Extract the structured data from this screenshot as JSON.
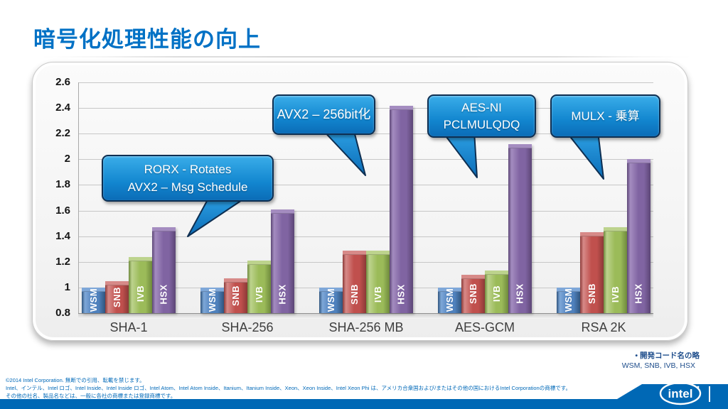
{
  "slide": {
    "title": "暗号化処理性能の向上",
    "footer_lines": [
      "©2014  Intel Corporation.  無断での引用、転載を禁じます。",
      "Intel、インテル、Intel ロゴ、Intel Inside、Intel Inside ロゴ、Intel Atom、Intel Atom Inside、Itanium、Itanium Inside、Xeon、Xeon Inside、Intel Xeon Phi は、アメリカ合衆国および/またはその他の国におけるIntel Corporationの商標です。",
      "その他の社名、製品名などは、一般に各社の商標または登録商標です。"
    ],
    "codename_note": {
      "line1": "•   開発コード名の略",
      "line2": "WSM, SNB, IVB, HSX"
    },
    "logo_text": "intel",
    "brand_blue": "#0068b5"
  },
  "chart_data": {
    "type": "bar",
    "title": "",
    "xlabel": "",
    "ylabel": "",
    "categories": [
      "SHA-1",
      "SHA-256",
      "SHA-256 MB",
      "AES-GCM",
      "RSA 2K"
    ],
    "series": [
      {
        "name": "WSM",
        "color": "#4f81bd",
        "color_light": "#7ea7d8",
        "color_dark": "#31567f",
        "values": [
          1.0,
          1.0,
          1.0,
          1.0,
          1.0
        ]
      },
      {
        "name": "SNB",
        "color": "#c0504d",
        "color_light": "#d78a88",
        "color_dark": "#8c3a38",
        "values": [
          1.05,
          1.07,
          1.29,
          1.1,
          1.43
        ]
      },
      {
        "name": "IVB",
        "color": "#9bbb59",
        "color_light": "#bdd38d",
        "color_dark": "#6f8a3d",
        "values": [
          1.24,
          1.21,
          1.29,
          1.13,
          1.47
        ]
      },
      {
        "name": "HSX",
        "color": "#8064a2",
        "color_light": "#a48cc0",
        "color_dark": "#5c4676",
        "values": [
          1.47,
          1.61,
          2.42,
          2.12,
          2.0
        ]
      }
    ],
    "ylim": [
      0.8,
      2.6
    ],
    "ytick_step": 0.2,
    "grid": true,
    "legend_position": "none",
    "annotations": [
      {
        "lines": [
          "RORX - Rotates",
          "AVX2 – Msg Schedule"
        ]
      },
      {
        "lines": [
          "AVX2 – 256bit化"
        ]
      },
      {
        "lines": [
          "AES-NI",
          "PCLMULQDQ"
        ]
      },
      {
        "lines": [
          "MULX - 乗算"
        ]
      }
    ]
  }
}
